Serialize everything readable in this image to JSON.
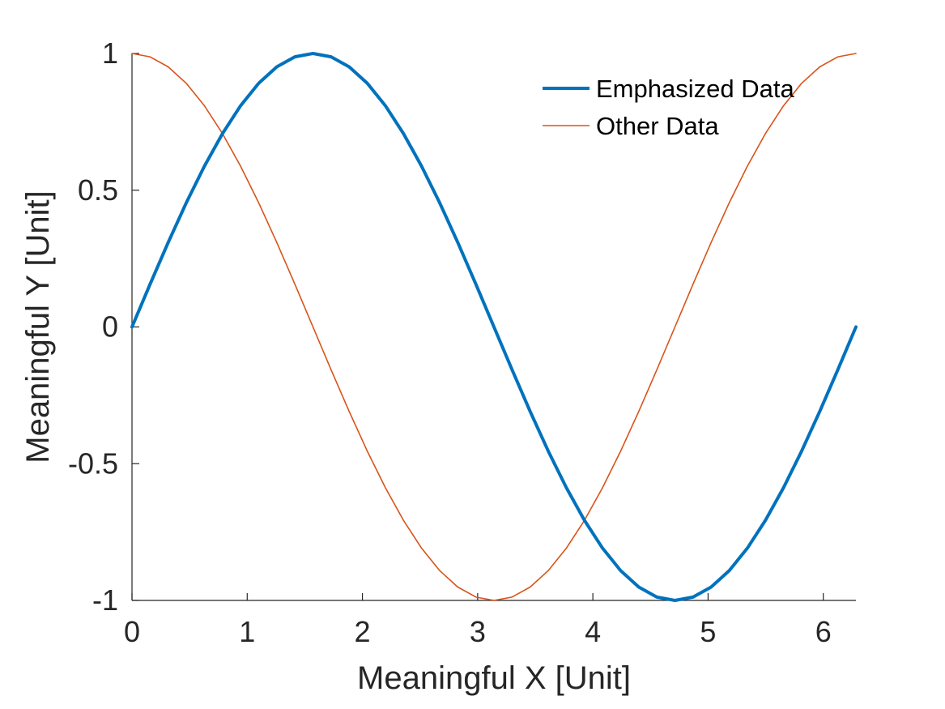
{
  "chart_data": {
    "type": "line",
    "title": "",
    "xlabel": "Meaningful X [Unit]",
    "ylabel": "Meaningful Y [Unit]",
    "xlim": [
      0,
      6.283185
    ],
    "ylim": [
      -1,
      1
    ],
    "xticks": [
      0,
      1,
      2,
      3,
      4,
      5,
      6
    ],
    "xtick_labels": [
      "0",
      "1",
      "2",
      "3",
      "4",
      "5",
      "6"
    ],
    "yticks": [
      -1,
      -0.5,
      0,
      0.5,
      1
    ],
    "ytick_labels": [
      "-1",
      "-0.5",
      "0",
      "0.5",
      "1"
    ],
    "grid": false,
    "legend_position": "top-right",
    "x": [
      0,
      0.1571,
      0.3142,
      0.4712,
      0.6283,
      0.7854,
      0.9425,
      1.0996,
      1.2566,
      1.4137,
      1.5708,
      1.7279,
      1.885,
      2.042,
      2.1991,
      2.3562,
      2.5133,
      2.6704,
      2.8274,
      2.9845,
      3.1416,
      3.2987,
      3.4558,
      3.6128,
      3.7699,
      3.927,
      4.0841,
      4.2412,
      4.3982,
      4.5553,
      4.7124,
      4.8695,
      5.0265,
      5.1836,
      5.3407,
      5.4978,
      5.6549,
      5.8119,
      5.969,
      6.1261,
      6.2832
    ],
    "series": [
      {
        "name": "Emphasized Data",
        "color": "#0072BD",
        "values": [
          0,
          0.1564,
          0.309,
          0.454,
          0.5878,
          0.7071,
          0.809,
          0.891,
          0.9511,
          0.9877,
          1,
          0.9877,
          0.9511,
          0.891,
          0.809,
          0.7071,
          0.5878,
          0.454,
          0.309,
          0.1564,
          0,
          -0.1564,
          -0.309,
          -0.454,
          -0.5878,
          -0.7071,
          -0.809,
          -0.891,
          -0.9511,
          -0.9877,
          -1,
          -0.9877,
          -0.9511,
          -0.891,
          -0.809,
          -0.7071,
          -0.5878,
          -0.454,
          -0.309,
          -0.1564,
          0
        ]
      },
      {
        "name": "Other Data",
        "color": "#D95319",
        "values": [
          1,
          0.9877,
          0.9511,
          0.891,
          0.809,
          0.7071,
          0.5878,
          0.454,
          0.309,
          0.1564,
          0,
          -0.1564,
          -0.309,
          -0.454,
          -0.5878,
          -0.7071,
          -0.809,
          -0.891,
          -0.9511,
          -0.9877,
          -1,
          -0.9877,
          -0.9511,
          -0.891,
          -0.809,
          -0.7071,
          -0.5878,
          -0.454,
          -0.309,
          -0.1564,
          0,
          0.1564,
          0.309,
          0.454,
          0.5878,
          0.7071,
          0.809,
          0.891,
          0.9511,
          0.9877,
          1
        ]
      }
    ]
  }
}
